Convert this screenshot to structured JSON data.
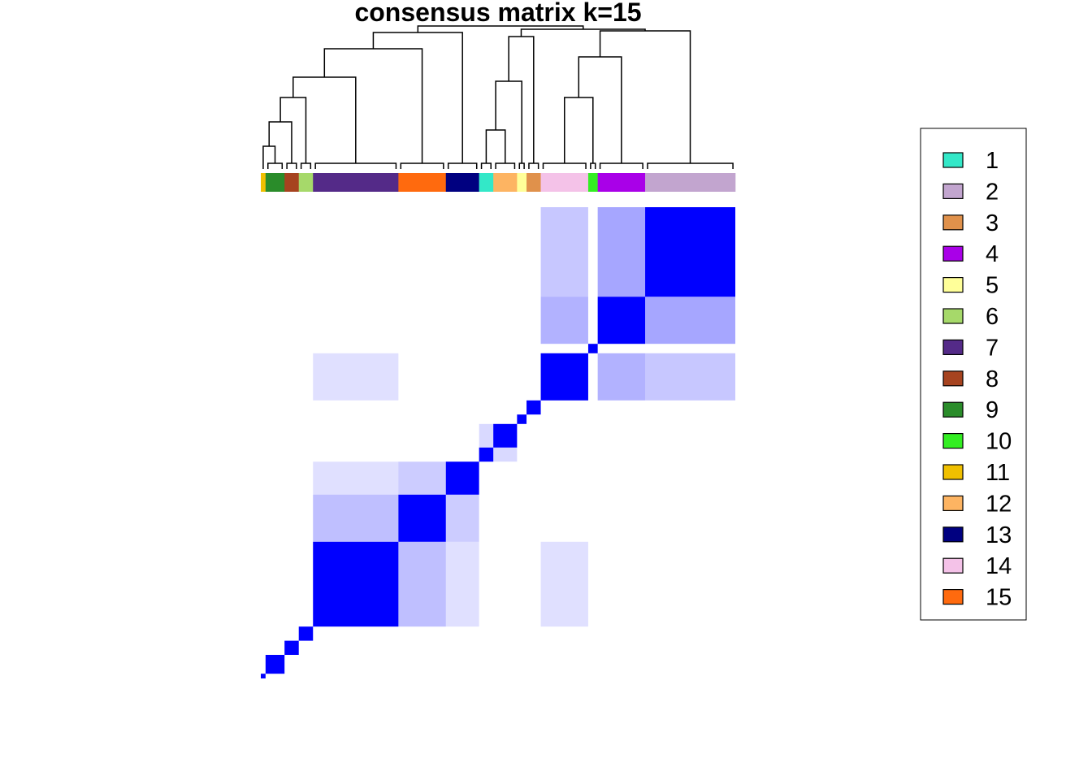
{
  "chart_data": {
    "type": "heatmap",
    "title": "consensus matrix k=15",
    "legend": {
      "placement": "right",
      "entries": [
        {
          "label": "1",
          "color": "#33E8C8"
        },
        {
          "label": "2",
          "color": "#C2A5CF"
        },
        {
          "label": "3",
          "color": "#E0914B"
        },
        {
          "label": "4",
          "color": "#A900E8"
        },
        {
          "label": "5",
          "color": "#FFFF99"
        },
        {
          "label": "6",
          "color": "#A6D96A"
        },
        {
          "label": "7",
          "color": "#542A88"
        },
        {
          "label": "8",
          "color": "#A6431F"
        },
        {
          "label": "9",
          "color": "#2A8C2A"
        },
        {
          "label": "10",
          "color": "#33EE22"
        },
        {
          "label": "11",
          "color": "#F0C000"
        },
        {
          "label": "12",
          "color": "#FDB462"
        },
        {
          "label": "13",
          "color": "#000080"
        },
        {
          "label": "14",
          "color": "#F4C2E8"
        },
        {
          "label": "15",
          "color": "#FF6A0E"
        }
      ]
    },
    "column_class_order": [
      "11",
      "9",
      "8",
      "6",
      "7",
      "15",
      "13",
      "1",
      "12",
      "5",
      "3",
      "14",
      "10",
      "4",
      "2"
    ],
    "column_class_counts": [
      1,
      4,
      3,
      3,
      18,
      10,
      7,
      3,
      5,
      2,
      3,
      10,
      2,
      10,
      19
    ],
    "color_scale": {
      "low": "#FFFFFF",
      "high": "#0000FF",
      "range": [
        0,
        1
      ]
    },
    "dendrogram": true
  }
}
